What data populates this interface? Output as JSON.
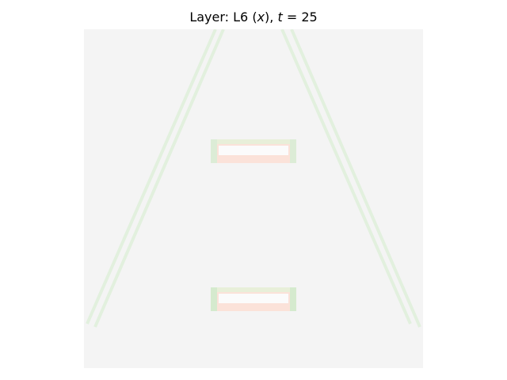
{
  "title": {
    "prefix": "Layer: L6 (",
    "var": "x",
    "middle": "), ",
    "tvar": "t",
    "suffix": " = 25"
  },
  "colors": {
    "page_background": "#ffffff",
    "image_background": "#f4f4f4",
    "diagonal_green": "#e3f1df",
    "rect_green": "#d8ecd3",
    "rect_red": "#f8dcd4",
    "rect_inner": "#fbfbfb"
  }
}
